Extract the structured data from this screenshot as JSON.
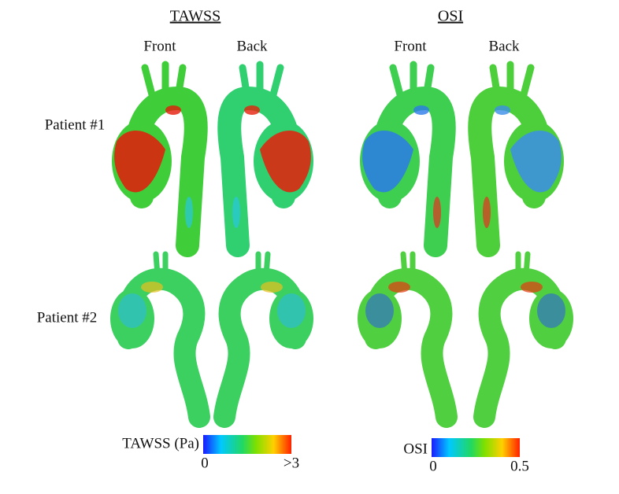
{
  "header": {
    "left_title": "TAWSS",
    "right_title": "OSI"
  },
  "views": [
    "Front",
    "Back",
    "Front",
    "Back"
  ],
  "rows": [
    "Patient #1",
    "Patient #2"
  ],
  "colorbars": [
    {
      "label": "TAWSS (Pa)",
      "min_label": "0",
      "max_label": ">3"
    },
    {
      "label": "OSI",
      "min_label": "0",
      "max_label": "0.5"
    }
  ]
}
